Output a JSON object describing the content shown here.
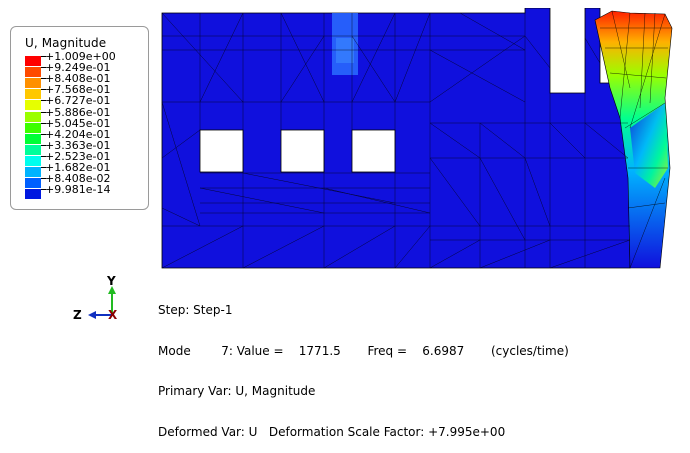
{
  "legend": {
    "title": "U, Magnitude",
    "entries": [
      {
        "label": "+1.009e+00",
        "color": "#ff0000"
      },
      {
        "label": "+9.249e-01",
        "color": "#ff4a00"
      },
      {
        "label": "+8.408e-01",
        "color": "#ff9000"
      },
      {
        "label": "+7.568e-01",
        "color": "#ffc800"
      },
      {
        "label": "+6.727e-01",
        "color": "#e6ff00"
      },
      {
        "label": "+5.886e-01",
        "color": "#9aff00"
      },
      {
        "label": "+5.045e-01",
        "color": "#3cff00"
      },
      {
        "label": "+4.204e-01",
        "color": "#00ff36"
      },
      {
        "label": "+3.363e-01",
        "color": "#00ff9a"
      },
      {
        "label": "+2.523e-01",
        "color": "#00ffee"
      },
      {
        "label": "+1.682e-01",
        "color": "#00b4ff"
      },
      {
        "label": "+8.408e-02",
        "color": "#0060ff"
      },
      {
        "label": "+9.981e-14",
        "color": "#0018e0"
      }
    ]
  },
  "triad": {
    "y_label": "Y",
    "z_label": "Z",
    "x_label": "X"
  },
  "info": {
    "step_line": "Step: Step-1",
    "mode_line": "Mode        7: Value =    1771.5       Freq =    6.6987       (cycles/time)",
    "primary_line": "Primary Var: U, Magnitude",
    "deformed_line": "Deformed Var: U   Deformation Scale Factor: +7.995e+00"
  },
  "colors": {
    "mesh_base": "#1010dd",
    "mesh_edge": "#000000"
  }
}
